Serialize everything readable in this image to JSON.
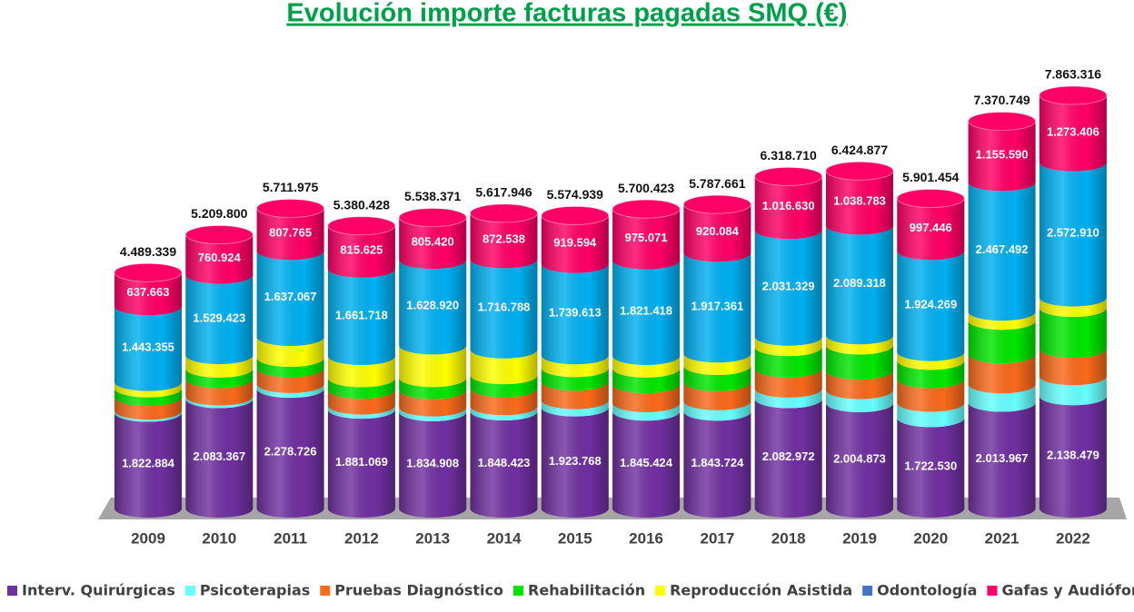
{
  "chart_data": {
    "type": "stacked_cylinder",
    "title": "Evolución importe facturas pagadas SMQ (€)",
    "categories": [
      "2009",
      "2010",
      "2011",
      "2012",
      "2013",
      "2014",
      "2015",
      "2016",
      "2017",
      "2018",
      "2019",
      "2020",
      "2021",
      "2022"
    ],
    "series": [
      {
        "name": "Interv. Quirúrgicas",
        "color": "#7030a0",
        "values": [
          1822884,
          2083367,
          2278726,
          1881069,
          1834908,
          1848423,
          1923768,
          1845424,
          1843724,
          2082972,
          2004873,
          1722530,
          2013967,
          2138479
        ],
        "value_labels": [
          "1.822.884",
          "2.083.367",
          "2.278.726",
          "1.881.069",
          "1.834.908",
          "1.848.423",
          "1.923.768",
          "1.845.424",
          "1.843.724",
          "2.082.972",
          "2.004.873",
          "1.722.530",
          "2.013.967",
          "2.138.479"
        ]
      },
      {
        "name": "Psicoterapias",
        "color": "#66ffff",
        "values": [
          40000,
          50000,
          90000,
          80000,
          90000,
          100000,
          140000,
          160000,
          200000,
          200000,
          250000,
          290000,
          350000,
          380000
        ]
      },
      {
        "name": "Pruebas Diagnóstico",
        "color": "#f96a1b",
        "values": [
          260000,
          330000,
          300000,
          300000,
          330000,
          340000,
          350000,
          360000,
          360000,
          380000,
          370000,
          450000,
          570000,
          520000
        ]
      },
      {
        "name": "Rehabilitación",
        "color": "#00e600",
        "values": [
          165000,
          200000,
          200000,
          220000,
          230000,
          250000,
          260000,
          300000,
          310000,
          410000,
          480000,
          350000,
          640000,
          780000
        ]
      },
      {
        "name": "Reproducción Asistida",
        "color": "#ffff00",
        "values": [
          120437,
          256086,
          398417,
          422016,
          619123,
          490197,
          241964,
          238510,
          236492,
          197779,
          191903,
          167209,
          173700,
          198521
        ]
      },
      {
        "name": "Odontología",
        "color": "#00b0f0",
        "legend_color": "#4472c4",
        "values": [
          1443355,
          1529423,
          1637067,
          1661718,
          1628920,
          1716788,
          1739613,
          1821418,
          1917361,
          2031329,
          2089318,
          1924269,
          2467492,
          2572910
        ],
        "value_labels": [
          "1.443.355",
          "1.529.423",
          "1.637.067",
          "1.661.718",
          "1.628.920",
          "1.716.788",
          "1.739.613",
          "1.821.418",
          "1.917.361",
          "2.031.329",
          "2.089.318",
          "1.924.269",
          "2.467.492",
          "2.572.910"
        ]
      },
      {
        "name": "Gafas y Audiófonos",
        "color": "#ff0066",
        "values": [
          637663,
          760924,
          807765,
          815625,
          805420,
          872538,
          919594,
          975071,
          920084,
          1016630,
          1038783,
          997446,
          1155590,
          1273406
        ],
        "value_labels": [
          "637.663",
          "760.924",
          "807.765",
          "815.625",
          "805.420",
          "872.538",
          "919.594",
          "975.071",
          "920.084",
          "1.016.630",
          "1.038.783",
          "997.446",
          "1.155.590",
          "1.273.406"
        ]
      }
    ],
    "totals": [
      4489339,
      5209800,
      5711975,
      5380428,
      5538371,
      5617946,
      5574939,
      5700423,
      5787661,
      6318710,
      6424877,
      5901454,
      7370749,
      7863316
    ],
    "total_labels": [
      "4.489.339",
      "5.209.800",
      "5.711.975",
      "5.380.428",
      "5.538.371",
      "5.617.946",
      "5.574.939",
      "5.700.423",
      "5.787.661",
      "6.318.710",
      "6.424.877",
      "5.901.454",
      "7.370.749",
      "7.863.316"
    ]
  }
}
